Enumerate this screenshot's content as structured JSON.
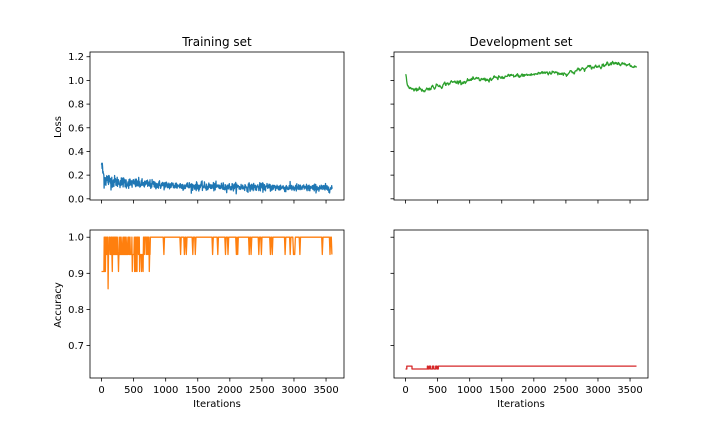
{
  "figure": {
    "background": "#ffffff"
  },
  "chart_data": [
    {
      "id": "train-loss",
      "type": "line",
      "title": "Training set",
      "xlabel": "",
      "ylabel": "Loss",
      "xlim": [
        -180,
        3780
      ],
      "ylim": [
        -0.01,
        1.24
      ],
      "xticks": [
        0,
        500,
        1000,
        1500,
        2000,
        2500,
        3000,
        3500
      ],
      "xtick_labels_visible": false,
      "yticks": [
        0.0,
        0.2,
        0.4,
        0.6,
        0.8,
        1.0,
        1.2
      ],
      "ytick_labels": [
        "0.0",
        "0.2",
        "0.4",
        "0.6",
        "0.8",
        "1.0",
        "1.2"
      ],
      "series": [
        {
          "color": "#1f77b4",
          "style": "noisy",
          "x_range": [
            0,
            3600
          ],
          "knots": [
            [
              0,
              0.3
            ],
            [
              40,
              0.17
            ],
            [
              150,
              0.15
            ],
            [
              500,
              0.13
            ],
            [
              1000,
              0.115
            ],
            [
              1500,
              0.105
            ],
            [
              2000,
              0.1
            ],
            [
              2500,
              0.098
            ],
            [
              3000,
              0.093
            ],
            [
              3600,
              0.09
            ]
          ],
          "spread": [
            [
              0,
              0.12
            ],
            [
              200,
              0.07
            ],
            [
              1000,
              0.05
            ],
            [
              3600,
              0.045
            ]
          ],
          "y_min": 0.04,
          "y_max": 0.3
        }
      ]
    },
    {
      "id": "dev-loss",
      "type": "line",
      "title": "Development set",
      "xlabel": "",
      "ylabel": "",
      "xlim": [
        -180,
        3780
      ],
      "ylim": [
        -0.01,
        1.24
      ],
      "xticks": [
        0,
        500,
        1000,
        1500,
        2000,
        2500,
        3000,
        3500
      ],
      "xtick_labels_visible": false,
      "yticks": [
        0.0,
        0.2,
        0.4,
        0.6,
        0.8,
        1.0,
        1.2
      ],
      "ytick_labels_visible": false,
      "series": [
        {
          "color": "#2ca02c",
          "style": "walk",
          "x_range": [
            0,
            3600
          ],
          "knots": [
            [
              0,
              1.05
            ],
            [
              30,
              0.95
            ],
            [
              150,
              0.93
            ],
            [
              300,
              0.92
            ],
            [
              450,
              0.95
            ],
            [
              700,
              0.98
            ],
            [
              1000,
              1.0
            ],
            [
              1300,
              1.01
            ],
            [
              1600,
              1.03
            ],
            [
              2000,
              1.05
            ],
            [
              2200,
              1.07
            ],
            [
              2500,
              1.06
            ],
            [
              2800,
              1.1
            ],
            [
              3000,
              1.12
            ],
            [
              3250,
              1.16
            ],
            [
              3400,
              1.13
            ],
            [
              3600,
              1.11
            ]
          ],
          "jitter": 0.012
        }
      ]
    },
    {
      "id": "train-acc",
      "type": "line",
      "title": "",
      "xlabel": "Iterations",
      "ylabel": "Accuracy",
      "xlim": [
        -180,
        3780
      ],
      "ylim": [
        0.61,
        1.02
      ],
      "xticks": [
        0,
        500,
        1000,
        1500,
        2000,
        2500,
        3000,
        3500
      ],
      "xtick_labels": [
        "0",
        "500",
        "1000",
        "1500",
        "2000",
        "2500",
        "3000",
        "3500"
      ],
      "yticks": [
        0.7,
        0.8,
        0.9,
        1.0
      ],
      "ytick_labels": [
        "0.7",
        "0.8",
        "0.9",
        "1.0"
      ],
      "series": [
        {
          "color": "#ff7f0e",
          "style": "spikes",
          "x_range": [
            0,
            3600
          ],
          "levels": [
            1.0,
            0.952,
            0.905
          ],
          "dense_until": 760,
          "dip_points": [
            [
              100,
              0.857
            ],
            [
              480,
              0.905
            ],
            [
              170,
              0.905
            ],
            [
              60,
              0.905
            ]
          ]
        }
      ]
    },
    {
      "id": "dev-acc",
      "type": "line",
      "title": "",
      "xlabel": "Iterations",
      "ylabel": "",
      "xlim": [
        -180,
        3780
      ],
      "ylim": [
        0.61,
        1.02
      ],
      "xticks": [
        0,
        500,
        1000,
        1500,
        2000,
        2500,
        3000,
        3500
      ],
      "xtick_labels": [
        "0",
        "500",
        "1000",
        "1500",
        "2000",
        "2500",
        "3000",
        "3500"
      ],
      "yticks": [
        0.7,
        0.8,
        0.9,
        1.0
      ],
      "ytick_labels_visible": false,
      "series": [
        {
          "color": "#d62728",
          "style": "steps",
          "x_range": [
            0,
            3600
          ],
          "base": 0.635,
          "high": 0.643,
          "steps": [
            [
              0,
              0.635
            ],
            [
              20,
              0.643
            ],
            [
              100,
              0.635
            ],
            [
              340,
              0.643
            ],
            [
              350,
              0.635
            ],
            [
              370,
              0.643
            ],
            [
              390,
              0.635
            ],
            [
              420,
              0.643
            ],
            [
              440,
              0.635
            ],
            [
              470,
              0.643
            ],
            [
              490,
              0.635
            ],
            [
              510,
              0.643
            ],
            [
              3600,
              0.643
            ]
          ]
        }
      ]
    }
  ]
}
